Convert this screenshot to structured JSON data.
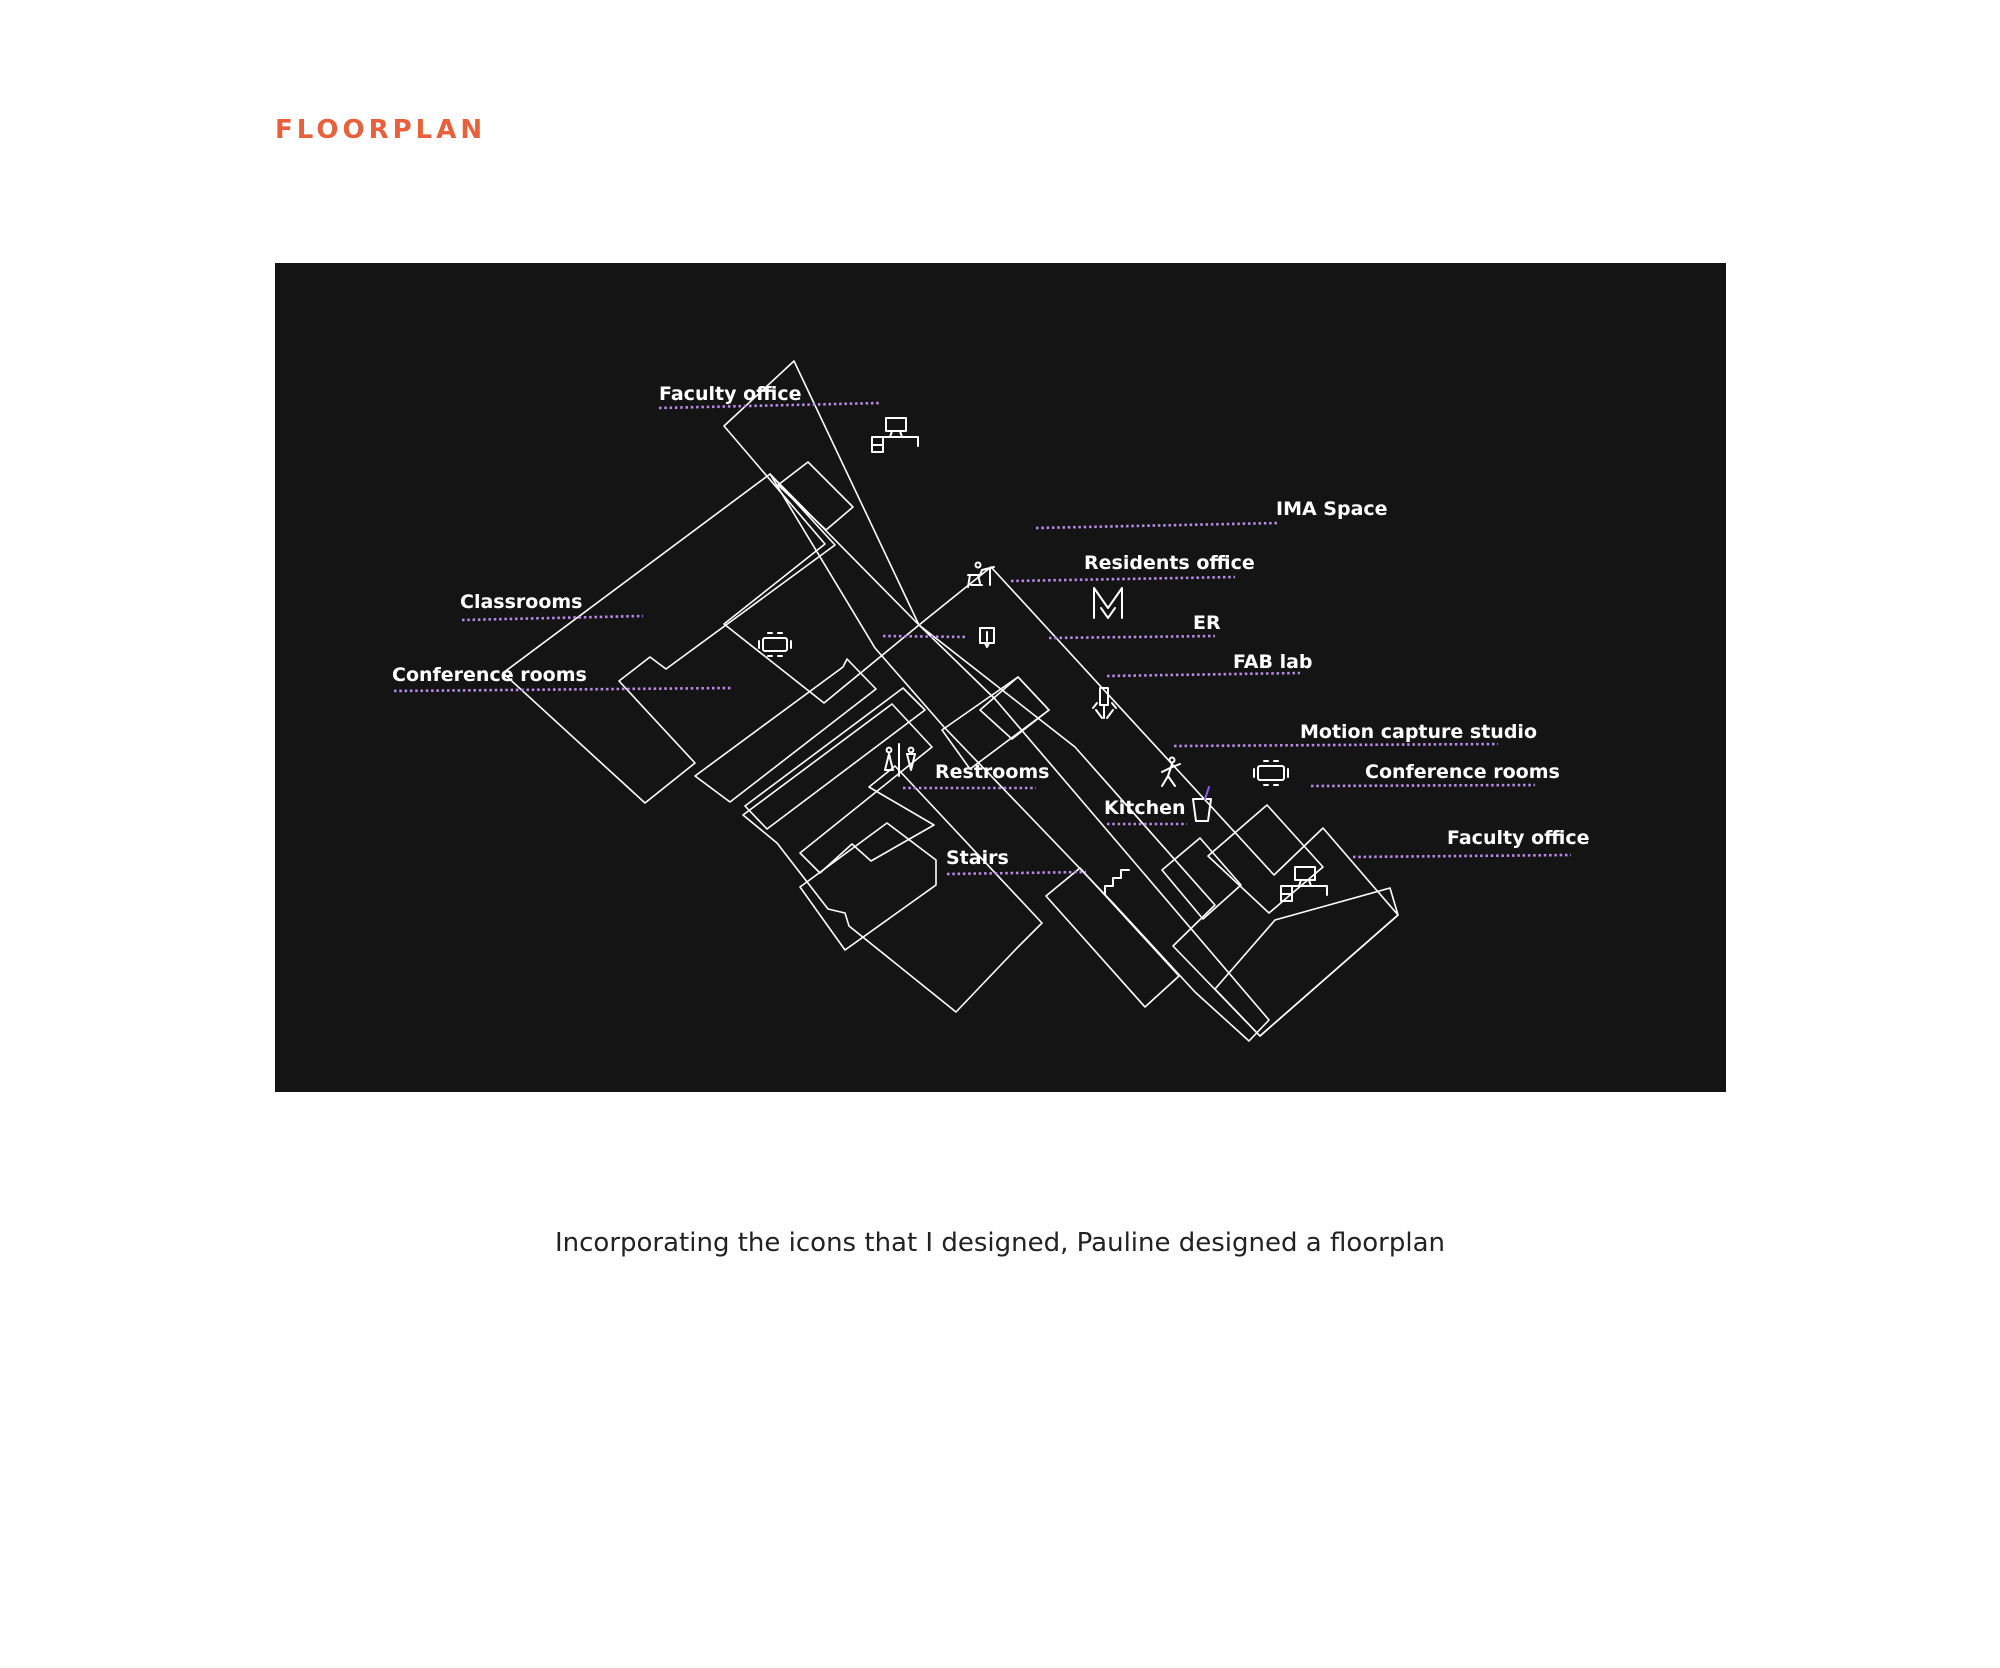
{
  "heading": "FLOORPLAN",
  "caption": "Incorporating the icons that I designed, Pauline designed a floorplan",
  "colors": {
    "heading": "#e8603c",
    "figure_background": "#141414",
    "walls": "#ffffff",
    "leader": "#b88be8",
    "accent_purple": "#8a5cf0"
  },
  "floorplan": {
    "labels": {
      "faculty_office_top": "Faculty office",
      "ima_space": "IMA Space",
      "residents_office": "Residents office",
      "classrooms": "Classrooms",
      "er": "ER",
      "conference_rooms_left": "Conference rooms",
      "fab_lab": "FAB lab",
      "motion_capture_studio": "Motion capture studio",
      "restrooms": "Restrooms",
      "conference_rooms_right": "Conference rooms",
      "kitchen": "Kitchen",
      "faculty_office_bottom": "Faculty office",
      "stairs": "Stairs"
    },
    "icons": {
      "faculty_office_top": "desk-computer-icon",
      "residents_office": "person-at-desk-icon",
      "ima_space": "ima-logo-icon",
      "classrooms": "conference-table-icon",
      "er": "info-board-icon",
      "fab_lab": "soldering-iron-icon",
      "restrooms": "restroom-icon",
      "motion_capture": "running-figure-icon",
      "kitchen": "cup-icon",
      "conference_rooms_right": "conference-table-icon",
      "faculty_office_bottom": "desk-computer-icon",
      "stairs": "stairs-icon"
    }
  }
}
